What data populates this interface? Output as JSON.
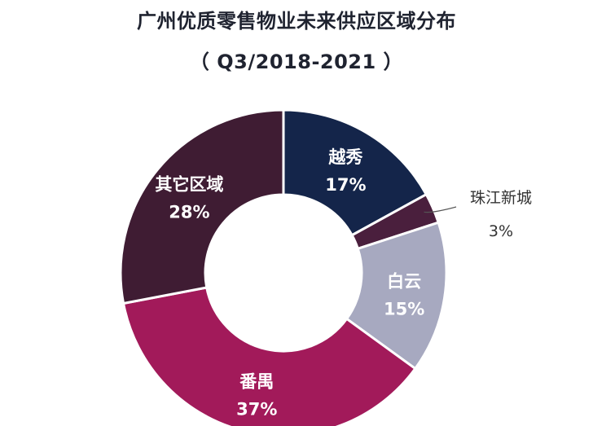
{
  "chart_data": {
    "type": "pie",
    "title": "广州优质零售物业未来供应区域分布",
    "subtitle": "（ Q3/2018-2021 ）",
    "donut": true,
    "start_angle_deg": 0,
    "direction": "clockwise",
    "slices": [
      {
        "label": "越秀",
        "value": 17,
        "value_label": "17%",
        "color": "#14254a",
        "text_color": "#ffffff",
        "label_position": "inside"
      },
      {
        "label": "珠江新城",
        "value": 3,
        "value_label": "3%",
        "color": "#4a1f3d",
        "text_color": "#333333",
        "label_position": "outside"
      },
      {
        "label": "白云",
        "value": 15,
        "value_label": "15%",
        "color": "#a7a9c0",
        "text_color": "#ffffff",
        "label_position": "inside"
      },
      {
        "label": "番禺",
        "value": 37,
        "value_label": "37%",
        "color": "#a21a5a",
        "text_color": "#ffffff",
        "label_position": "inside"
      },
      {
        "label": "其它区域",
        "value": 28,
        "value_label": "28%",
        "color": "#3f1c33",
        "text_color": "#ffffff",
        "label_position": "inside"
      }
    ]
  }
}
